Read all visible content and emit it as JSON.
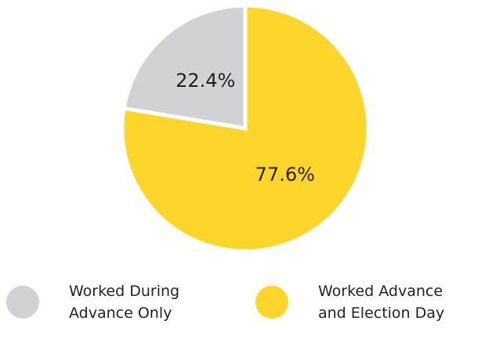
{
  "chart_data": {
    "type": "pie",
    "categories": [
      "Worked During Advance Only",
      "Worked Advance and Election Day"
    ],
    "values": [
      22.4,
      77.6
    ],
    "value_labels": [
      "22.4%",
      "77.6%"
    ],
    "colors": [
      "#d1d2d4",
      "#fdd52b"
    ]
  }
}
